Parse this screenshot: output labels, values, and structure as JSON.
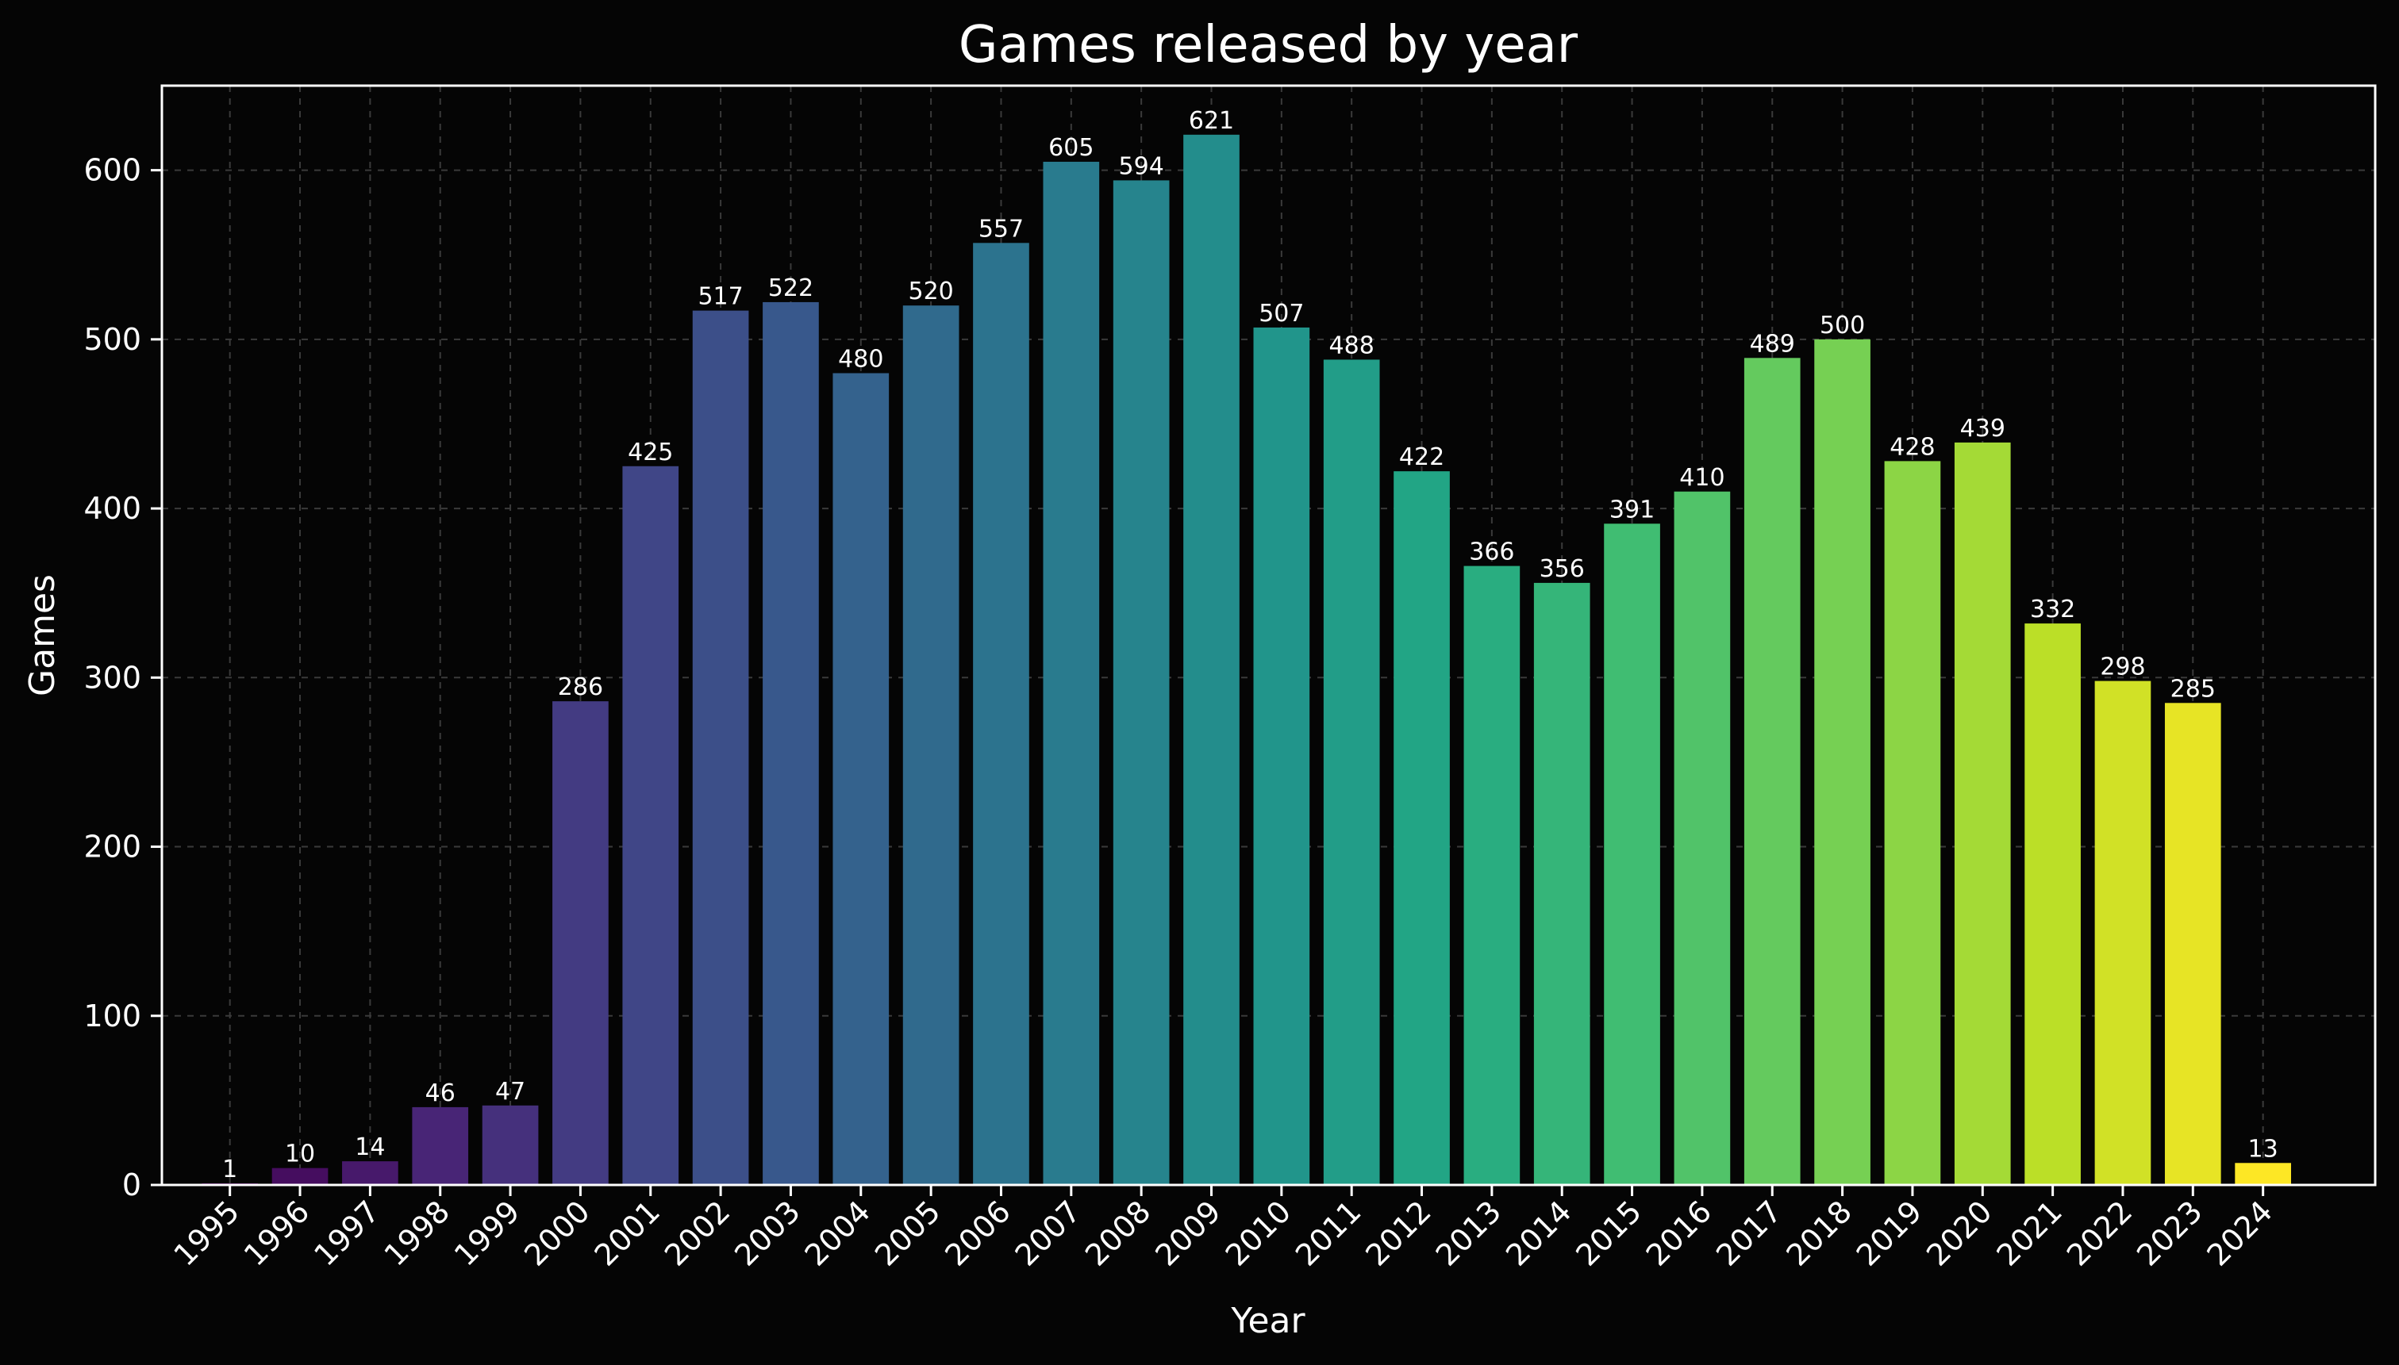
{
  "chart_data": {
    "type": "bar",
    "title": "Games released by year",
    "xlabel": "Year",
    "ylabel": "Games",
    "ylim": [
      0,
      650
    ],
    "yticks": [
      0,
      100,
      200,
      300,
      400,
      500,
      600
    ],
    "grid": true,
    "colormap": "viridis",
    "categories": [
      "1995",
      "1996",
      "1997",
      "1998",
      "1999",
      "2000",
      "2001",
      "2002",
      "2003",
      "2004",
      "2005",
      "2006",
      "2007",
      "2008",
      "2009",
      "2010",
      "2011",
      "2012",
      "2013",
      "2014",
      "2015",
      "2016",
      "2017",
      "2018",
      "2019",
      "2020",
      "2021",
      "2022",
      "2023",
      "2024"
    ],
    "values": [
      1,
      10,
      14,
      46,
      47,
      286,
      425,
      517,
      522,
      480,
      520,
      557,
      605,
      594,
      621,
      507,
      488,
      422,
      366,
      356,
      391,
      410,
      489,
      500,
      428,
      439,
      332,
      298,
      285,
      13
    ],
    "colors": [
      "#440154",
      "#471365",
      "#482475",
      "#463480",
      "#414487",
      "#3b528b",
      "#355f8d",
      "#2f6c8e",
      "#2a788e",
      "#25848e",
      "#21918c",
      "#1e9c89",
      "#22a884",
      "#2fb47c",
      "#44bf70",
      "#5ec962",
      "#7ad151",
      "#9bd93c",
      "#bddf26",
      "#dfe318",
      "#440154",
      "#440154",
      "#440154",
      "#440154",
      "#440154",
      "#440154",
      "#440154",
      "#440154",
      "#440154",
      "#440154"
    ]
  }
}
